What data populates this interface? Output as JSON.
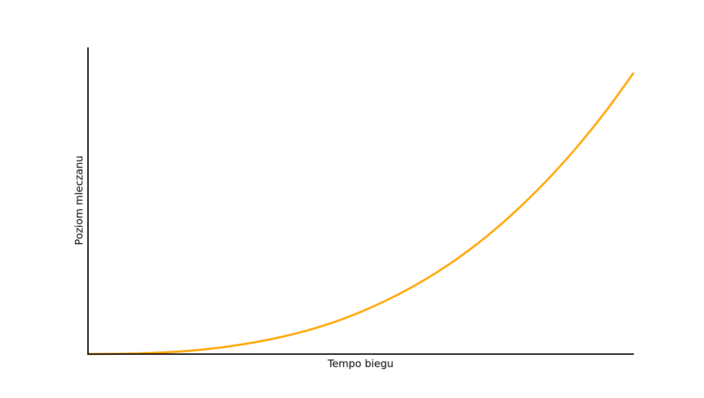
{
  "chart_data": {
    "type": "line",
    "title": "",
    "xlabel": "Tempo biegu",
    "ylabel": "Poziom mleczanu",
    "xlim": [
      0,
      1
    ],
    "ylim": [
      0,
      1.093
    ],
    "grid": false,
    "ticks_shown": false,
    "series": [
      {
        "color": "#FFA500",
        "x": [
          0,
          0.05,
          0.1,
          0.15,
          0.2,
          0.25,
          0.3,
          0.35,
          0.4,
          0.45,
          0.5,
          0.55,
          0.6,
          0.65,
          0.7,
          0.75,
          0.8,
          0.85,
          0.9,
          0.95,
          1.0
        ],
        "y": [
          0,
          0.001,
          0.003,
          0.007,
          0.014,
          0.025,
          0.04,
          0.059,
          0.083,
          0.113,
          0.15,
          0.194,
          0.245,
          0.304,
          0.372,
          0.45,
          0.538,
          0.636,
          0.745,
          0.866,
          1.0
        ]
      }
    ]
  }
}
